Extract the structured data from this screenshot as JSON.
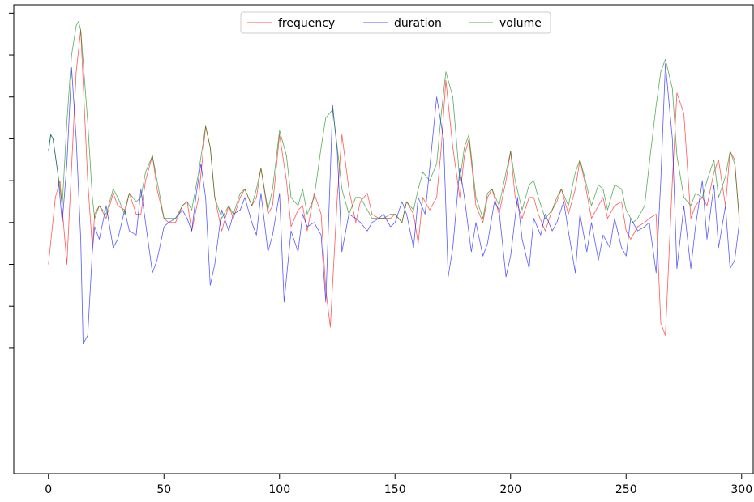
{
  "chart_data": {
    "type": "line",
    "title": "",
    "xlabel": "",
    "ylabel": "",
    "xlim": [
      -15,
      305
    ],
    "ylim": [
      -3.0,
      2.6
    ],
    "xticks": [
      0,
      50,
      100,
      150,
      200,
      250,
      300
    ],
    "xtick_labels": [
      "0",
      "50",
      "100",
      "150",
      "200",
      "250",
      "300"
    ],
    "yticks": [
      -1.5,
      -1.0,
      -0.5,
      0.0,
      0.5,
      1.0,
      1.5,
      2.0,
      2.5
    ],
    "ytick_labels": [
      "",
      "",
      "",
      "",
      "",
      "",
      "",
      "",
      ""
    ],
    "grid": false,
    "legend_position": "top-center",
    "legend": [
      "frequency",
      "duration",
      "volume"
    ],
    "series": [
      {
        "name": "frequency",
        "color": "#ff0000",
        "x": [
          0,
          3,
          5,
          8,
          12,
          14,
          17,
          19,
          20,
          22,
          25,
          28,
          30,
          33,
          35,
          38,
          40,
          42,
          45,
          47,
          50,
          52,
          55,
          58,
          60,
          62,
          65,
          68,
          70,
          72,
          75,
          78,
          80,
          83,
          85,
          88,
          90,
          92,
          95,
          97,
          100,
          103,
          105,
          108,
          110,
          112,
          115,
          118,
          120,
          122,
          125,
          127,
          130,
          133,
          135,
          138,
          140,
          143,
          145,
          148,
          150,
          153,
          155,
          158,
          160,
          162,
          165,
          168,
          170,
          172,
          175,
          178,
          180,
          182,
          185,
          188,
          190,
          192,
          195,
          198,
          200,
          202,
          205,
          208,
          210,
          212,
          215,
          218,
          220,
          222,
          225,
          228,
          230,
          232,
          235,
          238,
          240,
          242,
          245,
          248,
          250,
          252,
          255,
          258,
          260,
          263,
          265,
          267,
          270,
          272,
          275,
          278,
          280,
          283,
          285,
          288,
          290,
          293,
          295,
          297,
          299
        ],
        "y": [
          -0.5,
          0.3,
          0.5,
          -0.5,
          1.8,
          2.3,
          0.5,
          -0.3,
          0.1,
          0.2,
          0.05,
          0.35,
          0.2,
          0.15,
          0.35,
          0.1,
          0.1,
          0.5,
          0.8,
          0.4,
          0.05,
          0.0,
          0.0,
          0.2,
          0.25,
          -0.1,
          0.3,
          1.15,
          0.9,
          0.3,
          -0.1,
          0.2,
          0.05,
          0.3,
          0.4,
          0.2,
          0.3,
          0.65,
          0.1,
          0.2,
          1.05,
          0.5,
          -0.05,
          0.15,
          0.2,
          -0.1,
          0.35,
          0.1,
          -0.8,
          -1.25,
          0.3,
          1.05,
          0.4,
          0.0,
          0.25,
          0.35,
          0.1,
          0.05,
          0.05,
          0.05,
          0.1,
          0.0,
          0.25,
          0.1,
          -0.25,
          0.3,
          0.15,
          0.3,
          0.9,
          1.7,
          0.9,
          0.3,
          0.8,
          1.0,
          0.2,
          0.0,
          0.3,
          0.4,
          0.1,
          0.5,
          0.85,
          0.3,
          0.05,
          0.3,
          0.3,
          0.1,
          -0.1,
          0.15,
          0.25,
          0.4,
          0.1,
          0.4,
          0.75,
          0.5,
          0.05,
          0.2,
          0.3,
          0.05,
          0.2,
          0.25,
          -0.1,
          -0.2,
          -0.05,
          0.0,
          0.05,
          0.1,
          -1.2,
          -1.35,
          0.5,
          1.55,
          1.3,
          0.05,
          0.2,
          0.3,
          0.2,
          0.6,
          0.75,
          0.2,
          0.85,
          0.75,
          0.0
        ]
      },
      {
        "name": "duration",
        "color": "#0000ff",
        "x": [
          0,
          1,
          2,
          4,
          6,
          8,
          10,
          12,
          14,
          15,
          17,
          19,
          20,
          22,
          25,
          28,
          30,
          33,
          35,
          38,
          40,
          42,
          45,
          47,
          50,
          52,
          55,
          58,
          60,
          62,
          64,
          66,
          68,
          70,
          72,
          75,
          78,
          80,
          83,
          85,
          88,
          90,
          92,
          95,
          97,
          100,
          102,
          105,
          108,
          110,
          112,
          115,
          118,
          120,
          123,
          125,
          127,
          130,
          133,
          135,
          138,
          140,
          143,
          145,
          148,
          150,
          153,
          155,
          158,
          160,
          163,
          165,
          168,
          171,
          173,
          175,
          178,
          180,
          183,
          185,
          188,
          190,
          193,
          195,
          198,
          200,
          203,
          205,
          208,
          210,
          213,
          215,
          218,
          220,
          223,
          225,
          228,
          230,
          233,
          235,
          238,
          240,
          243,
          245,
          248,
          250,
          252,
          255,
          258,
          260,
          263,
          265,
          267,
          270,
          272,
          275,
          278,
          280,
          283,
          285,
          288,
          290,
          293,
          295,
          297,
          299
        ],
        "y": [
          0.85,
          1.05,
          1.0,
          0.6,
          0.0,
          0.7,
          1.85,
          1.0,
          -0.2,
          -1.45,
          -1.35,
          -0.35,
          -0.05,
          -0.2,
          0.2,
          -0.3,
          -0.2,
          0.15,
          -0.1,
          -0.15,
          0.4,
          0.0,
          -0.6,
          -0.45,
          -0.05,
          0.0,
          0.05,
          0.15,
          0.05,
          -0.1,
          0.35,
          0.7,
          0.3,
          -0.75,
          -0.5,
          0.15,
          -0.1,
          0.1,
          0.15,
          0.3,
          0.0,
          -0.15,
          0.35,
          -0.35,
          -0.15,
          0.35,
          -0.95,
          -0.1,
          -0.35,
          0.1,
          -0.05,
          0.0,
          -0.15,
          -0.95,
          1.4,
          0.85,
          -0.35,
          0.1,
          0.05,
          0.0,
          -0.1,
          0.0,
          0.05,
          0.1,
          -0.05,
          0.0,
          0.25,
          0.1,
          -0.3,
          0.3,
          0.1,
          0.65,
          1.5,
          1.0,
          -0.65,
          -0.3,
          0.65,
          0.3,
          -0.35,
          0.0,
          -0.4,
          -0.25,
          0.25,
          0.15,
          -0.65,
          -0.4,
          0.3,
          -0.2,
          -0.55,
          0.05,
          -0.15,
          0.1,
          -0.1,
          0.0,
          0.25,
          -0.1,
          -0.6,
          0.1,
          -0.35,
          0.0,
          -0.45,
          -0.15,
          -0.3,
          0.05,
          -0.3,
          -0.4,
          0.05,
          -0.1,
          -0.05,
          0.0,
          -0.6,
          0.5,
          1.9,
          1.0,
          -0.55,
          0.2,
          -0.55,
          -0.05,
          0.5,
          -0.2,
          0.45,
          -0.3,
          0.2,
          -0.55,
          -0.45,
          0.0
        ]
      },
      {
        "name": "volume",
        "color": "#008000",
        "x": [
          0,
          1,
          2,
          4,
          6,
          8,
          10,
          12,
          13,
          14,
          17,
          19,
          20,
          22,
          25,
          28,
          30,
          33,
          35,
          38,
          40,
          42,
          45,
          47,
          50,
          52,
          55,
          58,
          60,
          62,
          65,
          68,
          70,
          72,
          75,
          78,
          80,
          83,
          85,
          88,
          90,
          92,
          95,
          97,
          100,
          103,
          105,
          108,
          110,
          112,
          115,
          118,
          120,
          123,
          125,
          127,
          130,
          133,
          135,
          138,
          140,
          143,
          145,
          148,
          150,
          153,
          155,
          158,
          160,
          162,
          165,
          168,
          170,
          172,
          175,
          178,
          180,
          182,
          185,
          188,
          190,
          192,
          195,
          198,
          200,
          202,
          205,
          208,
          210,
          212,
          215,
          218,
          220,
          222,
          225,
          228,
          230,
          232,
          235,
          238,
          240,
          242,
          245,
          248,
          250,
          253,
          255,
          258,
          260,
          263,
          265,
          267,
          270,
          272,
          275,
          278,
          280,
          283,
          285,
          288,
          290,
          293,
          295,
          297,
          299
        ],
        "y": [
          0.85,
          1.05,
          1.0,
          0.6,
          0.2,
          1.2,
          2.0,
          2.35,
          2.4,
          2.3,
          1.2,
          0.3,
          0.05,
          0.2,
          0.1,
          0.4,
          0.3,
          0.1,
          0.35,
          0.25,
          0.3,
          0.6,
          0.8,
          0.5,
          0.05,
          0.05,
          0.05,
          0.2,
          0.25,
          0.15,
          0.6,
          1.15,
          0.9,
          0.3,
          0.05,
          0.2,
          0.1,
          0.35,
          0.4,
          0.2,
          0.4,
          0.65,
          0.15,
          0.4,
          1.1,
          0.8,
          0.3,
          0.2,
          0.4,
          0.1,
          0.3,
          0.9,
          1.25,
          1.35,
          0.9,
          0.4,
          0.1,
          0.3,
          0.3,
          0.15,
          0.05,
          0.05,
          0.05,
          0.1,
          0.1,
          0.0,
          0.25,
          0.15,
          0.4,
          0.6,
          0.5,
          0.7,
          1.3,
          1.8,
          1.5,
          0.5,
          0.9,
          1.05,
          0.3,
          0.05,
          0.35,
          0.4,
          0.2,
          0.6,
          0.85,
          0.5,
          0.15,
          0.45,
          0.5,
          0.3,
          0.05,
          0.15,
          0.3,
          0.4,
          0.2,
          0.6,
          0.75,
          0.55,
          0.2,
          0.45,
          0.4,
          0.15,
          0.45,
          0.4,
          0.15,
          0.0,
          0.05,
          0.2,
          0.7,
          1.4,
          1.8,
          1.95,
          1.6,
          0.8,
          0.3,
          0.2,
          0.35,
          0.3,
          0.5,
          0.75,
          0.3,
          0.55,
          0.85,
          0.7,
          0.05
        ]
      }
    ]
  }
}
